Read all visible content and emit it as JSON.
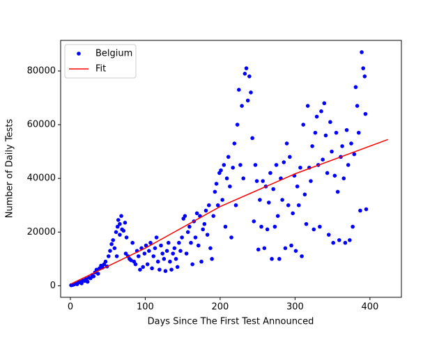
{
  "chart_data": {
    "type": "scatter",
    "xlabel": "Days Since The First Test Announced",
    "ylabel": "Number of Daily Tests",
    "xlim": [
      -13,
      442
    ],
    "ylim": [
      -4300,
      91400
    ],
    "xticks": [
      0,
      100,
      200,
      300,
      400
    ],
    "yticks": [
      0,
      20000,
      40000,
      60000,
      80000
    ],
    "legend": "upper left",
    "series": [
      {
        "name": "Belgium",
        "color": "#0000ff",
        "kind": "points",
        "x": [
          1,
          3,
          5,
          7,
          9,
          11,
          13,
          15,
          17,
          19,
          21,
          23,
          25,
          27,
          29,
          31,
          33,
          35,
          37,
          39,
          41,
          43,
          45,
          47,
          49,
          51,
          53,
          55,
          57,
          59,
          61,
          63,
          64,
          66,
          68,
          69,
          71,
          73,
          75,
          74,
          62,
          66,
          77,
          79,
          81,
          83,
          85,
          87,
          89,
          91,
          93,
          95,
          97,
          99,
          101,
          103,
          105,
          107,
          109,
          111,
          113,
          115,
          117,
          119,
          121,
          123,
          125,
          127,
          129,
          131,
          133,
          135,
          137,
          139,
          141,
          143,
          145,
          147,
          149,
          151,
          153,
          155,
          157,
          159,
          161,
          163,
          165,
          167,
          169,
          171,
          173,
          175,
          177,
          179,
          181,
          183,
          185,
          187,
          189,
          191,
          193,
          195,
          197,
          199,
          201,
          203,
          205,
          207,
          209,
          211,
          213,
          215,
          217,
          219,
          221,
          223,
          225,
          227,
          229,
          231,
          233,
          235,
          237,
          239,
          241,
          243,
          245,
          247,
          249,
          251,
          253,
          255,
          257,
          259,
          261,
          263,
          265,
          267,
          269,
          271,
          273,
          275,
          277,
          279,
          281,
          283,
          285,
          287,
          289,
          291,
          293,
          295,
          297,
          299,
          301,
          303,
          305,
          307,
          309,
          311,
          313,
          315,
          317,
          319,
          321,
          323,
          325,
          327,
          329,
          331,
          333,
          335,
          337,
          339,
          341,
          343,
          345,
          347,
          349,
          351,
          353,
          355,
          357,
          359,
          361,
          363,
          365,
          367,
          369,
          371,
          373,
          375,
          377,
          379,
          381,
          383,
          385,
          387,
          389,
          391,
          393,
          395,
          394
        ],
        "values": [
          200,
          300,
          500,
          800,
          600,
          1200,
          1500,
          900,
          2000,
          1800,
          2500,
          1500,
          3000,
          2800,
          4000,
          3500,
          5000,
          6000,
          4500,
          6500,
          7500,
          6800,
          8000,
          9000,
          7200,
          11000,
          13000,
          15500,
          17000,
          14000,
          20000,
          22000,
          24500,
          23000,
          26000,
          21000,
          20500,
          23500,
          18000,
          12000,
          11000,
          19000,
          11000,
          10000,
          9500,
          16000,
          9000,
          8000,
          13000,
          11000,
          6000,
          14000,
          7000,
          12000,
          15000,
          8000,
          13000,
          16000,
          6500,
          11000,
          14000,
          18000,
          9000,
          6000,
          15000,
          12000,
          10000,
          5500,
          13000,
          16000,
          9000,
          6000,
          12000,
          14000,
          10000,
          7000,
          16000,
          13000,
          18000,
          25000,
          26000,
          12000,
          20000,
          22000,
          16000,
          8000,
          24000,
          18000,
          27000,
          15000,
          26000,
          9000,
          21000,
          23000,
          28000,
          19000,
          30000,
          14000,
          10000,
          26000,
          35000,
          38000,
          30000,
          42000,
          43000,
          32000,
          45000,
          22000,
          40000,
          48000,
          37000,
          18000,
          44000,
          53000,
          30000,
          60000,
          73000,
          45000,
          67000,
          40000,
          79000,
          81000,
          69000,
          78000,
          72000,
          55000,
          24000,
          45000,
          39000,
          13500,
          32000,
          22000,
          39000,
          14000,
          37000,
          21000,
          31000,
          42000,
          10000,
          36000,
          22000,
          45000,
          26000,
          10000,
          40000,
          32000,
          46000,
          14000,
          53000,
          30000,
          48000,
          15000,
          27000,
          41000,
          13000,
          37000,
          30000,
          44000,
          11000,
          60000,
          34000,
          23000,
          67000,
          44000,
          39000,
          52000,
          21000,
          57000,
          63000,
          45000,
          22000,
          65000,
          47000,
          68000,
          56000,
          42000,
          19000,
          61000,
          50000,
          16000,
          41000,
          57000,
          35000,
          17000,
          48000,
          52000,
          40000,
          16000,
          58000,
          45000,
          17000,
          53000,
          22000,
          49000,
          74000,
          67000,
          57000,
          28000,
          87000,
          81000,
          78000,
          28500,
          64000
        ]
      },
      {
        "name": "Fit",
        "color": "#ff0000",
        "kind": "line",
        "x": [
          1,
          100,
          200,
          300,
          424
        ],
        "values": [
          700,
          14000,
          29500,
          41700,
          54500
        ]
      }
    ]
  }
}
